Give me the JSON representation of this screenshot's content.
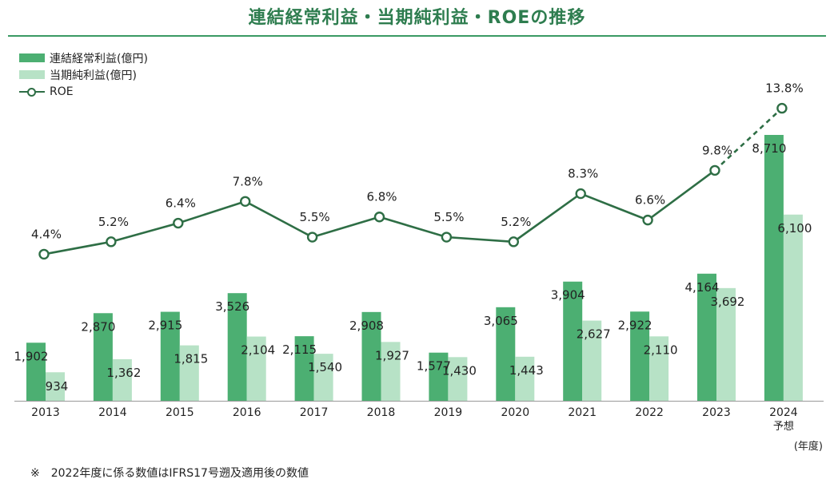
{
  "title": "連結経常利益・当期純利益・ROEの推移",
  "legend": {
    "ordinary": "連結経常利益(億円)",
    "net": "当期純利益(億円)",
    "roe": "ROE"
  },
  "colors": {
    "ordinary": "#4caf72",
    "net": "#b7e2c6",
    "roe": "#2e6e45",
    "title": "#2e7d4f"
  },
  "unit_label": "(年度)",
  "footnote": "※　2022年度に係る数値はIFRS17号遡及適用後の数値",
  "chart_data": {
    "type": "bar",
    "categories": [
      "2013",
      "2014",
      "2015",
      "2016",
      "2017",
      "2018",
      "2019",
      "2020",
      "2021",
      "2022",
      "2023",
      "2024"
    ],
    "category_sublabels": [
      "",
      "",
      "",
      "",
      "",
      "",
      "",
      "",
      "",
      "",
      "",
      "予想"
    ],
    "series": [
      {
        "name": "連結経常利益(億円)",
        "values": [
          1902,
          2870,
          2915,
          3526,
          2115,
          2908,
          1577,
          3065,
          3904,
          2922,
          4164,
          8710
        ],
        "labels": [
          "1,902",
          "2,870",
          "2,915",
          "3,526",
          "2,115",
          "2,908",
          "1,577",
          "3,065",
          "3,904",
          "2,922",
          "4,164",
          "8,710"
        ]
      },
      {
        "name": "当期純利益(億円)",
        "values": [
          934,
          1362,
          1815,
          2104,
          1540,
          1927,
          1430,
          1443,
          2627,
          2110,
          3692,
          6100
        ],
        "labels": [
          "934",
          "1,362",
          "1,815",
          "2,104",
          "1,540",
          "1,927",
          "1,430",
          "1,443",
          "2,627",
          "2,110",
          "3,692",
          "6,100"
        ]
      },
      {
        "name": "ROE",
        "type": "line",
        "values": [
          4.4,
          5.2,
          6.4,
          7.8,
          5.5,
          6.8,
          5.5,
          5.2,
          8.3,
          6.6,
          9.8,
          13.8
        ],
        "labels": [
          "4.4%",
          "5.2%",
          "6.4%",
          "7.8%",
          "5.5%",
          "6.8%",
          "5.5%",
          "5.2%",
          "8.3%",
          "6.6%",
          "9.8%",
          "13.8%"
        ],
        "dashed_last_segment": true
      }
    ],
    "xlabel": "(年度)",
    "ylabel": "",
    "grid": false
  }
}
